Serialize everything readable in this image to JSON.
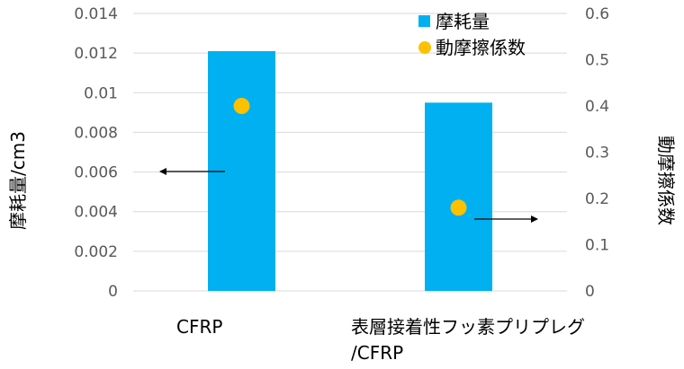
{
  "chart_data": {
    "type": "bar",
    "categories": [
      "CFRP",
      "表層接着性フッ素プリプレグ\n/CFRP"
    ],
    "series": [
      {
        "name": "摩耗量",
        "type": "bar",
        "axis": "left",
        "values": [
          0.0121,
          0.0095
        ],
        "color": "#00B0F0"
      },
      {
        "name": "動摩擦係数",
        "type": "scatter",
        "axis": "right",
        "values": [
          0.4,
          0.18
        ],
        "color": "#FFC000"
      }
    ],
    "ylabel": "摩耗量/cm3",
    "y2label": "動摩擦係数",
    "ylim": [
      0,
      0.014
    ],
    "y2lim": [
      0,
      0.6
    ],
    "yticks": [
      "0",
      "0.002",
      "0.004",
      "0.006",
      "0.008",
      "0.01",
      "0.012",
      "0.014"
    ],
    "y2ticks": [
      "0",
      "0.1",
      "0.2",
      "0.3",
      "0.4",
      "0.5",
      "0.6"
    ],
    "grid": true,
    "legend": "top-right"
  }
}
